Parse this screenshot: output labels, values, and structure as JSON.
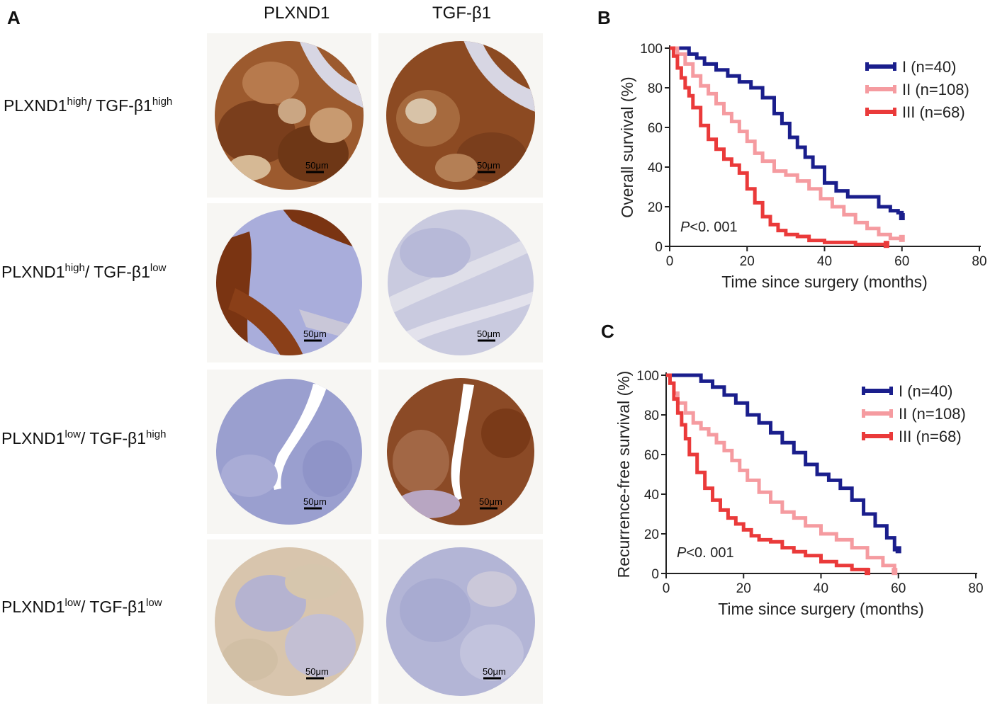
{
  "panel_a": {
    "letter": "A",
    "columns": [
      "PLXND1",
      "TGF-β1"
    ],
    "rows": [
      {
        "a": "PLXND1",
        "a_level": "high",
        "b": "TGF-β1",
        "b_level": "high"
      },
      {
        "a": "PLXND1",
        "a_level": "high",
        "b": "TGF-β1",
        "b_level": "low"
      },
      {
        "a": "PLXND1",
        "a_level": "low",
        "b": "TGF-β1",
        "b_level": "high"
      },
      {
        "a": "PLXND1",
        "a_level": "low",
        "b": "TGF-β1",
        "b_level": "low"
      }
    ],
    "scale_bar_label": "50μm",
    "stain_colors": {
      "strong": "#7a3e1c",
      "weak": "#d9c2a6",
      "counterstain": "#9da3cf",
      "stroma": "#dcdde8"
    }
  },
  "chart_data": [
    {
      "panel": "B",
      "type": "line",
      "title": "",
      "xlabel": "Time since surgery (months)",
      "ylabel": "Overall survival (%)",
      "xlim": [
        0,
        80
      ],
      "ylim": [
        0,
        100
      ],
      "xticks": [
        0,
        20,
        40,
        60,
        80
      ],
      "yticks": [
        0,
        20,
        40,
        60,
        80,
        100
      ],
      "annotation": {
        "p_prefix": "P",
        "p_rest": "<0. 001"
      },
      "legend_position": "top-right",
      "series": [
        {
          "name": "I (n=40)",
          "color": "#1a1e8c",
          "x": [
            0,
            3,
            5,
            7,
            9,
            12,
            15,
            18,
            21,
            24,
            27,
            29,
            31,
            33,
            35,
            37,
            40,
            43,
            46,
            50,
            54,
            57,
            59,
            60
          ],
          "y": [
            100,
            100,
            97,
            95,
            92,
            89,
            86,
            83,
            80,
            75,
            67,
            62,
            55,
            50,
            45,
            40,
            32,
            28,
            25,
            25,
            20,
            18,
            17,
            15
          ]
        },
        {
          "name": "II (n=108)",
          "color": "#f59ba0",
          "x": [
            0,
            2,
            4,
            6,
            8,
            10,
            12,
            14,
            16,
            18,
            20,
            22,
            24,
            27,
            30,
            33,
            36,
            39,
            42,
            45,
            48,
            51,
            54,
            57,
            60
          ],
          "y": [
            100,
            97,
            92,
            86,
            81,
            77,
            72,
            67,
            63,
            58,
            53,
            47,
            43,
            38,
            36,
            33,
            29,
            24,
            20,
            16,
            12,
            9,
            6,
            4,
            4
          ]
        },
        {
          "name": "III (n=68)",
          "color": "#ea3a3a",
          "x": [
            0,
            1,
            2,
            3,
            4,
            5,
            6,
            8,
            10,
            12,
            14,
            16,
            18,
            20,
            22,
            24,
            26,
            28,
            30,
            33,
            36,
            40,
            44,
            48,
            52,
            56
          ],
          "y": [
            100,
            96,
            90,
            85,
            80,
            76,
            70,
            61,
            54,
            49,
            44,
            41,
            37,
            29,
            22,
            15,
            11,
            8,
            6,
            5,
            3,
            2,
            2,
            1,
            1,
            1
          ]
        }
      ]
    },
    {
      "panel": "C",
      "type": "line",
      "title": "",
      "xlabel": "Time since surgery (months)",
      "ylabel": "Recurrence-free survival (%)",
      "xlim": [
        0,
        80
      ],
      "ylim": [
        0,
        100
      ],
      "xticks": [
        0,
        20,
        40,
        60,
        80
      ],
      "yticks": [
        0,
        20,
        40,
        60,
        80,
        100
      ],
      "annotation": {
        "p_prefix": "P",
        "p_rest": "<0. 001"
      },
      "legend_position": "top-right",
      "series": [
        {
          "name": "I (n=40)",
          "color": "#1a1e8c",
          "x": [
            0,
            3,
            6,
            9,
            12,
            15,
            18,
            21,
            24,
            27,
            30,
            33,
            36,
            39,
            42,
            45,
            48,
            51,
            54,
            57,
            59,
            60
          ],
          "y": [
            100,
            100,
            100,
            97,
            94,
            90,
            86,
            80,
            76,
            71,
            66,
            61,
            55,
            50,
            47,
            43,
            37,
            30,
            24,
            18,
            12,
            12
          ]
        },
        {
          "name": "II (n=108)",
          "color": "#f59ba0",
          "x": [
            0,
            1,
            2,
            3,
            5,
            7,
            9,
            11,
            13,
            15,
            17,
            19,
            21,
            24,
            27,
            30,
            33,
            36,
            40,
            44,
            48,
            52,
            56,
            59
          ],
          "y": [
            100,
            96,
            91,
            86,
            81,
            76,
            73,
            70,
            66,
            62,
            57,
            52,
            47,
            41,
            36,
            31,
            28,
            24,
            20,
            17,
            13,
            8,
            4,
            1
          ]
        },
        {
          "name": "III (n=68)",
          "color": "#ea3a3a",
          "x": [
            0,
            1,
            2,
            3,
            4,
            5,
            6,
            8,
            10,
            12,
            14,
            16,
            18,
            20,
            22,
            24,
            27,
            30,
            33,
            36,
            40,
            44,
            48,
            52
          ],
          "y": [
            100,
            96,
            88,
            81,
            75,
            68,
            60,
            51,
            43,
            37,
            32,
            28,
            25,
            22,
            19,
            17,
            16,
            13,
            11,
            9,
            6,
            4,
            2,
            1
          ]
        }
      ]
    }
  ]
}
